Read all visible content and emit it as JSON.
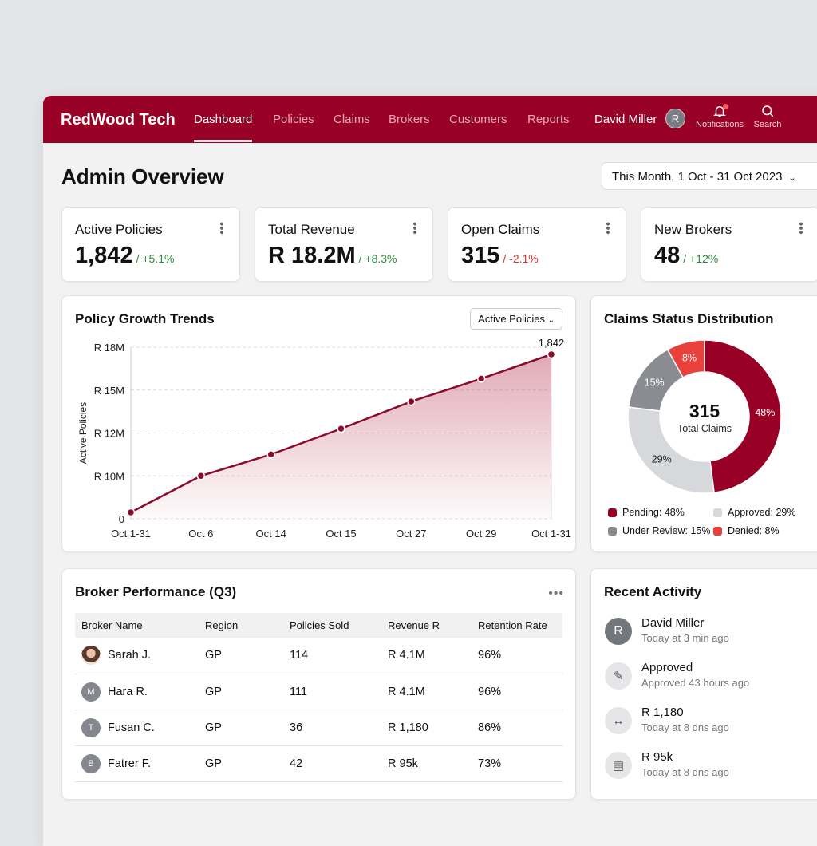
{
  "header": {
    "brand": "RedWood Tech",
    "nav": [
      "Dashboard",
      "Policies",
      "Claims",
      "Brokers",
      "Customers",
      "Reports"
    ],
    "active": "Dashboard",
    "user": "David Miller",
    "avatar": "R",
    "notifications": "Notifications",
    "search": "Search",
    "brand_color": "#980025"
  },
  "page": {
    "title": "Admin Overview",
    "date_range": "This Month, 1 Oct - 31 Oct 2023"
  },
  "kpis": [
    {
      "label": "Active Policies",
      "value": "1,842",
      "change": "/ +5.1%",
      "trend": "up"
    },
    {
      "label": "Total Revenue",
      "value": "R 18.2M",
      "change": "/ +8.3%",
      "trend": "up"
    },
    {
      "label": "Open Claims",
      "value": "315",
      "change": "/ -2.1%",
      "trend": "down"
    },
    {
      "label": "New Brokers",
      "value": "48",
      "change": "/ +12%",
      "trend": "up"
    }
  ],
  "growth": {
    "title": "Policy Growth Trends",
    "selector": "Active Policies"
  },
  "chart_data": [
    {
      "type": "area",
      "title": "Policy Growth Trends",
      "ylabel": "Active Policies",
      "xlabel": "",
      "categories": [
        "Oct 1-31",
        "Oct 6",
        "Oct 14",
        "Oct 15",
        "Oct 27",
        "Oct 29",
        "Oct 1-31"
      ],
      "values": [
        1.5,
        10,
        11,
        12.3,
        14.2,
        15.8,
        17.5
      ],
      "y_ticks": [
        0,
        10,
        12,
        15,
        18
      ],
      "y_tick_labels": [
        "0",
        "R 10M",
        "R 12M",
        "R 15M",
        "R 18M"
      ],
      "end_label": "1,842",
      "grid": true,
      "color": "#8c0a2a"
    },
    {
      "type": "pie",
      "title": "Claims Status Distribution",
      "center_value": "315",
      "center_label": "Total Claims",
      "slices": [
        {
          "name": "Pending",
          "value": 48,
          "label": "48%",
          "legend": "Pending: 48%",
          "color": "#980025"
        },
        {
          "name": "Approved",
          "value": 29,
          "label": "29%",
          "legend": "Approved: 29%",
          "color": "#d7d8dc"
        },
        {
          "name": "Under Review",
          "value": 15,
          "label": "15%",
          "legend": "Under Review: 15%",
          "color": "#8a8c91"
        },
        {
          "name": "Denied",
          "value": 8,
          "label": "8%",
          "legend": "Denied: 8%",
          "color": "#e8403a"
        }
      ]
    }
  ],
  "brokers": {
    "title": "Broker Performance (Q3)",
    "columns": [
      "Broker Name",
      "Region",
      "Policies Sold",
      "Revenue R",
      "Retention Rate"
    ],
    "rows": [
      {
        "avatar": "",
        "name": "Sarah J.",
        "region": "GP",
        "sold": "114",
        "revenue": "R 4.1M",
        "retention": "96%"
      },
      {
        "avatar": "M",
        "name": "Hara R.",
        "region": "GP",
        "sold": "111",
        "revenue": "R 4.1M",
        "retention": "96%"
      },
      {
        "avatar": "T",
        "name": "Fusan C.",
        "region": "GP",
        "sold": "36",
        "revenue": "R 1,180",
        "retention": "86%"
      },
      {
        "avatar": "B",
        "name": "Fatrer F.",
        "region": "GP",
        "sold": "42",
        "revenue": "R 95k",
        "retention": "73%"
      }
    ]
  },
  "activity": {
    "title": "Recent Activity",
    "items": [
      {
        "icon": "R",
        "title": "David Miller",
        "sub": "Today at 3 min ago"
      },
      {
        "icon": "edit-icon",
        "title": "Approved",
        "sub": "Approved 43 hours ago"
      },
      {
        "icon": "transfer-icon",
        "title": "R 1,180",
        "sub": "Today at 8 dns ago"
      },
      {
        "icon": "document-icon",
        "title": "R 95k",
        "sub": "Today at 8 dns ago"
      }
    ]
  }
}
